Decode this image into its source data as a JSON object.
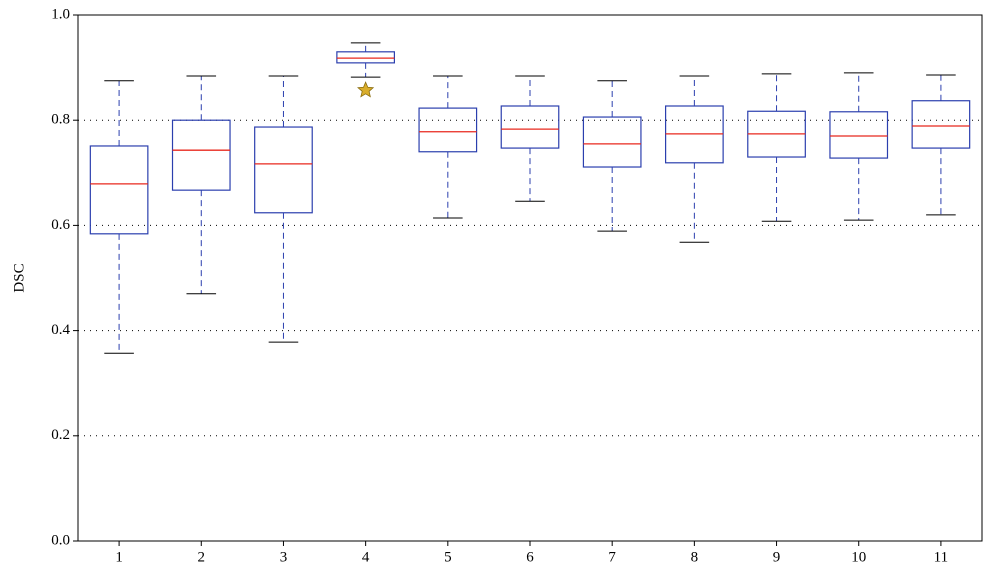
{
  "chart_data": {
    "type": "box",
    "ylabel": "DSC",
    "categories": [
      "1",
      "2",
      "3",
      "4",
      "5",
      "6",
      "7",
      "8",
      "9",
      "10",
      "11"
    ],
    "boxes": [
      {
        "whislo": 0.357,
        "q1": 0.584,
        "med": 0.679,
        "q3": 0.751,
        "whishi": 0.875,
        "fliers": []
      },
      {
        "whislo": 0.47,
        "q1": 0.667,
        "med": 0.743,
        "q3": 0.8,
        "whishi": 0.884,
        "fliers": []
      },
      {
        "whislo": 0.378,
        "q1": 0.624,
        "med": 0.717,
        "q3": 0.787,
        "whishi": 0.884,
        "fliers": []
      },
      {
        "whislo": 0.882,
        "q1": 0.909,
        "med": 0.918,
        "q3": 0.93,
        "whishi": 0.947,
        "fliers": [
          0.857
        ]
      },
      {
        "whislo": 0.614,
        "q1": 0.74,
        "med": 0.778,
        "q3": 0.823,
        "whishi": 0.884,
        "fliers": []
      },
      {
        "whislo": 0.646,
        "q1": 0.747,
        "med": 0.783,
        "q3": 0.827,
        "whishi": 0.884,
        "fliers": []
      },
      {
        "whislo": 0.589,
        "q1": 0.711,
        "med": 0.755,
        "q3": 0.806,
        "whishi": 0.875,
        "fliers": []
      },
      {
        "whislo": 0.568,
        "q1": 0.719,
        "med": 0.774,
        "q3": 0.827,
        "whishi": 0.884,
        "fliers": []
      },
      {
        "whislo": 0.608,
        "q1": 0.73,
        "med": 0.774,
        "q3": 0.817,
        "whishi": 0.888,
        "fliers": []
      },
      {
        "whislo": 0.61,
        "q1": 0.728,
        "med": 0.77,
        "q3": 0.816,
        "whishi": 0.89,
        "fliers": []
      },
      {
        "whislo": 0.62,
        "q1": 0.747,
        "med": 0.789,
        "q3": 0.837,
        "whishi": 0.886,
        "fliers": []
      }
    ],
    "box_color": "#2b3fae",
    "median_color": "#e8281e",
    "cap_color": "#000000",
    "flier_color": "#d9ad2b",
    "ylim": [
      0,
      1
    ],
    "yticks": [
      {
        "value": 0,
        "label": "0.0"
      },
      0.2,
      0.4,
      0.6,
      0.8,
      {
        "value": 1,
        "label": "1.0"
      }
    ],
    "grid": true
  }
}
